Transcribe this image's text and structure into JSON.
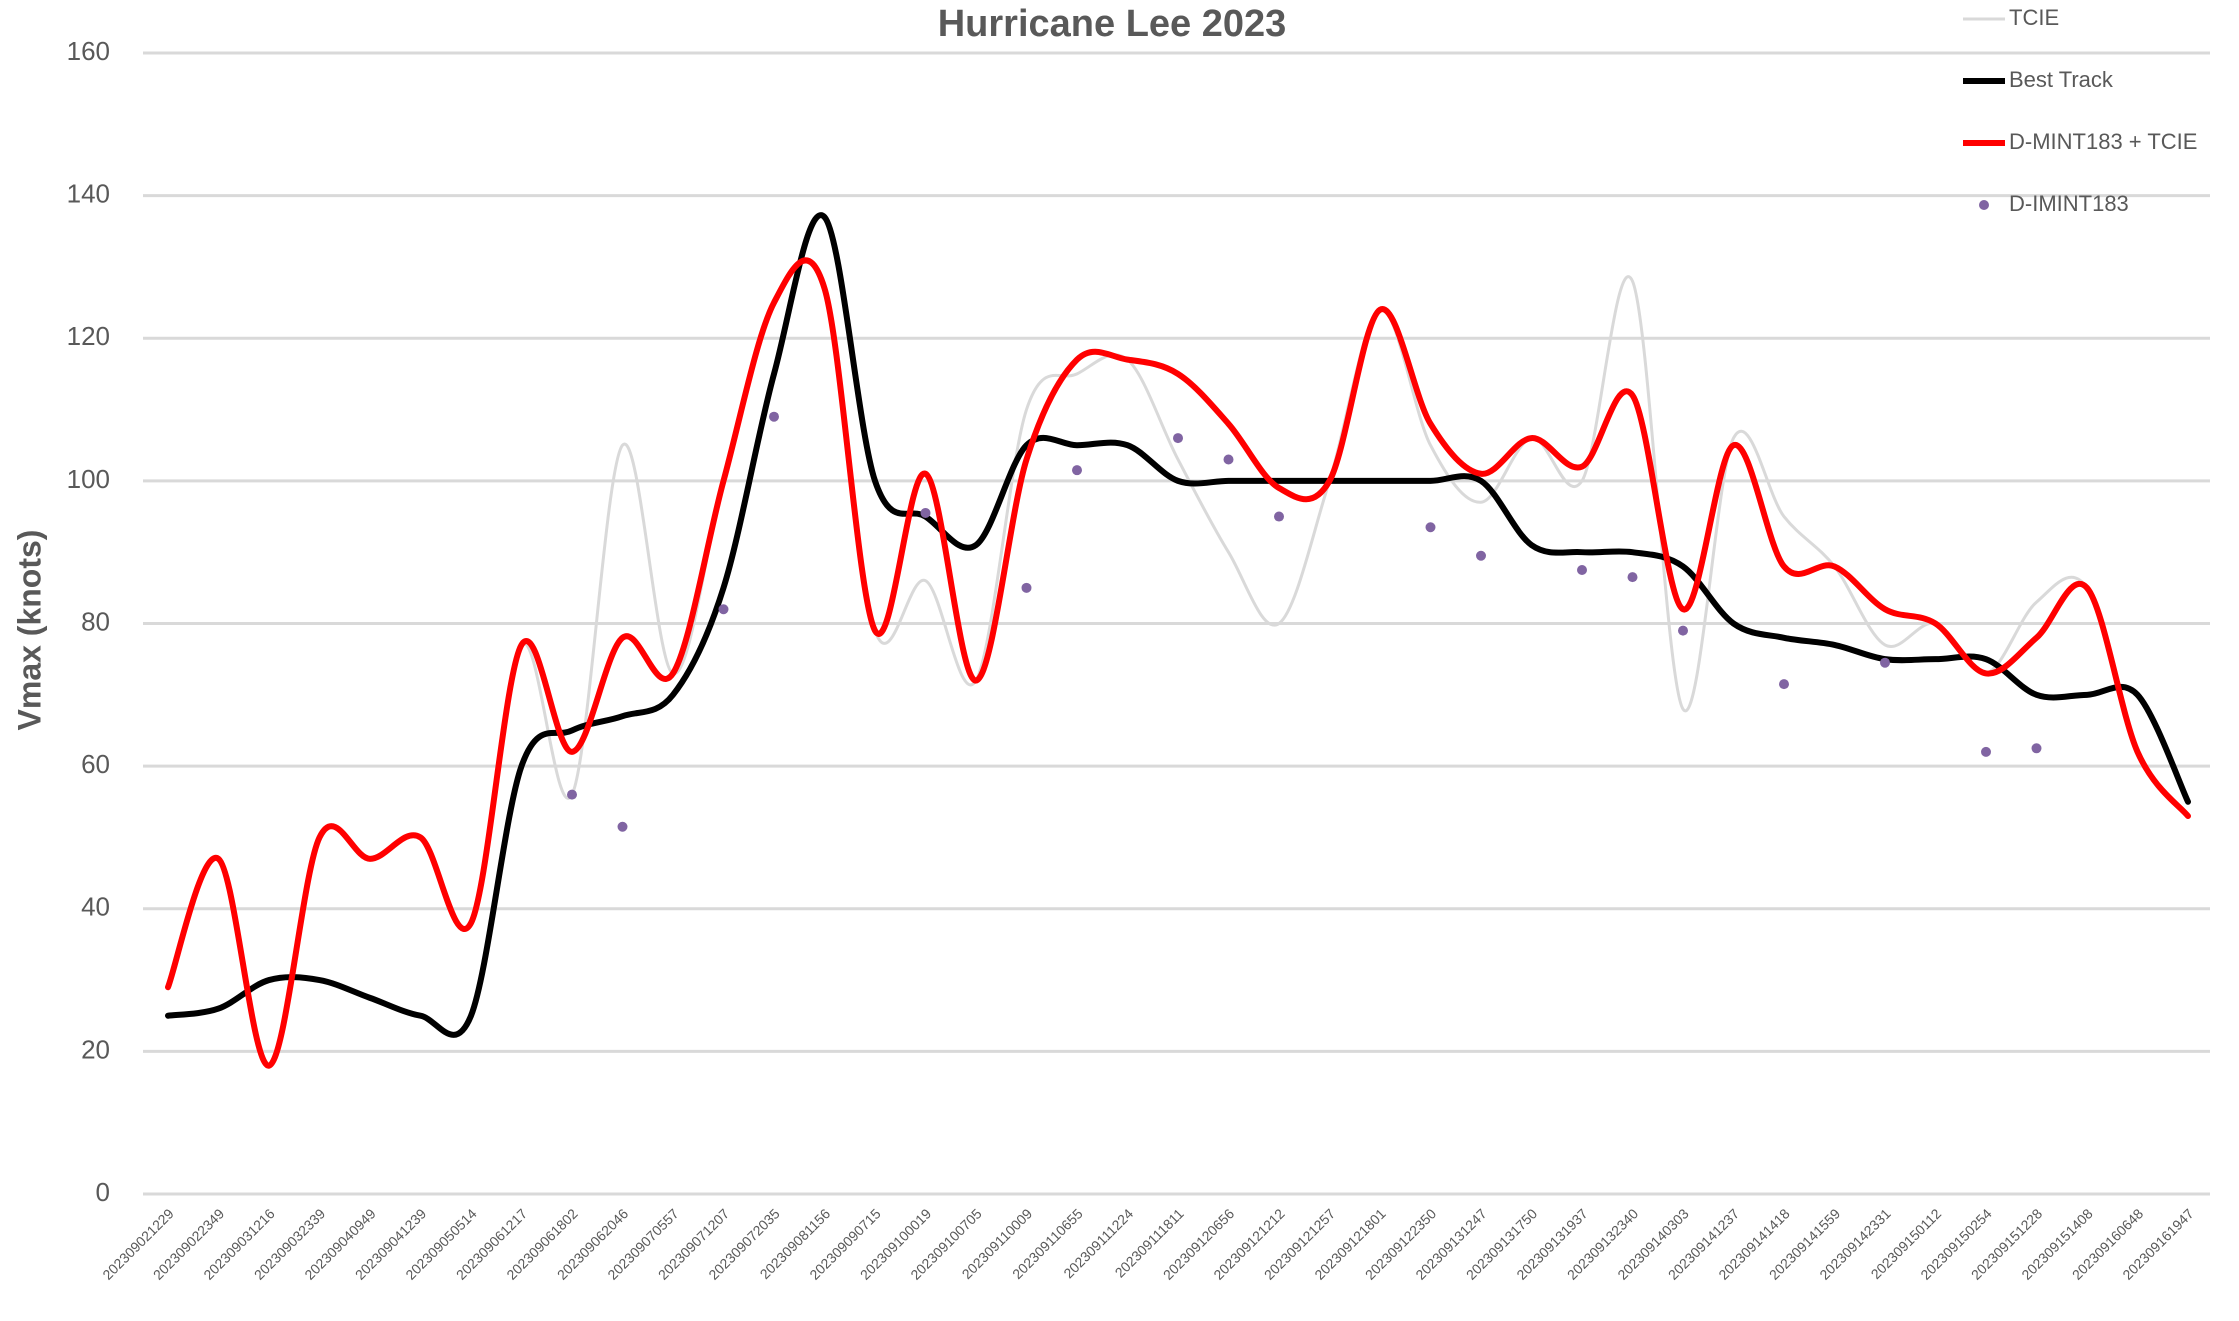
{
  "chart_data": {
    "type": "line",
    "title": "Hurricane Lee 2023",
    "y_label": "Vmax (knots)",
    "categories": [
      "202309021229",
      "202309022349",
      "202309031216",
      "202309032339",
      "202309040949",
      "202309041239",
      "202309050514",
      "202309061217",
      "202309061802",
      "202309062046",
      "202309070557",
      "202309071207",
      "202309072035",
      "202309081156",
      "202309090715",
      "202309100019",
      "202309100705",
      "202309110009",
      "202309110655",
      "202309111224",
      "202309111811",
      "202309120656",
      "202309121212",
      "202309121257",
      "202309121801",
      "202309122350",
      "202309131247",
      "202309131750",
      "202309131937",
      "202309132340",
      "202309140303",
      "202309141237",
      "202309141418",
      "202309141559",
      "202309142331",
      "202309150112",
      "202309150254",
      "202309151228",
      "202309151408",
      "202309160648",
      "202309161947"
    ],
    "series": [
      {
        "name": "TCIE",
        "color": "#d9d9d9",
        "style": "line",
        "values": [
          29,
          47,
          18,
          50,
          47,
          50,
          38,
          77,
          56,
          105,
          73,
          100,
          125,
          127,
          79,
          86,
          72,
          110,
          115,
          117,
          103,
          90,
          80,
          100,
          124,
          105,
          97,
          106,
          100,
          128,
          68,
          106,
          95,
          88,
          77,
          80,
          73,
          83,
          85,
          62,
          53
        ]
      },
      {
        "name": "Best Track",
        "color": "#000000",
        "style": "line",
        "values": [
          25,
          26,
          30,
          30,
          27.5,
          25,
          25,
          60,
          65,
          67,
          70,
          85,
          115,
          137,
          100,
          95,
          91,
          105,
          105,
          105,
          100,
          100,
          100,
          100,
          100,
          100,
          100,
          91,
          90,
          90,
          88,
          80,
          78,
          77,
          75,
          75,
          75,
          70,
          70,
          70,
          55
        ]
      },
      {
        "name": "D-MINT183 + TCIE",
        "color": "#ff0000",
        "style": "line",
        "values": [
          29,
          47,
          18,
          50,
          47,
          50,
          38,
          77,
          62,
          78,
          73,
          100,
          125,
          127,
          79,
          101,
          72,
          103,
          117,
          117,
          115,
          108,
          99,
          100,
          124,
          108,
          101,
          106,
          102,
          112,
          82,
          105,
          88,
          88,
          82,
          80,
          73,
          78,
          85,
          62,
          53
        ]
      },
      {
        "name": "D-IMINT183",
        "color": "#8064a2",
        "style": "marker",
        "values": [
          null,
          null,
          null,
          null,
          null,
          null,
          null,
          null,
          56,
          51.5,
          null,
          82,
          109,
          null,
          null,
          95.5,
          null,
          85,
          101.5,
          null,
          106,
          103,
          95,
          null,
          null,
          93.5,
          89.5,
          null,
          87.5,
          86.5,
          79,
          null,
          71.5,
          null,
          74.5,
          null,
          62,
          62.5,
          null,
          null,
          null
        ]
      }
    ],
    "ylim": [
      0,
      160
    ],
    "yticks": [
      0,
      20,
      40,
      60,
      80,
      100,
      120,
      140,
      160
    ],
    "grid": true,
    "legend": "top-right"
  }
}
